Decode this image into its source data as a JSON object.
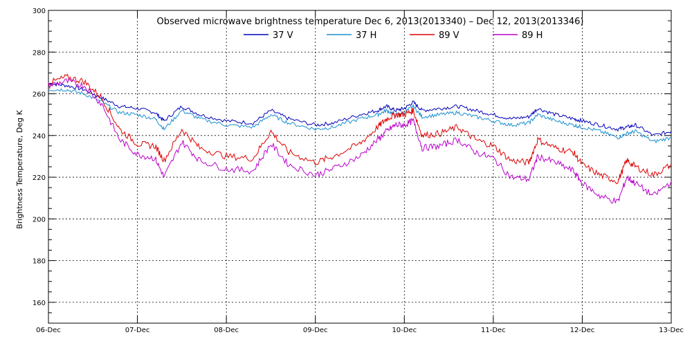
{
  "chart_data": {
    "type": "line",
    "title": "Observed microwave brightness temperature Dec  6, 2013(2013340) – Dec 12, 2013(2013346)",
    "xlabel": "",
    "ylabel": "Brightness Temperature, Deg K",
    "x_ticks": [
      "06-Dec",
      "07-Dec",
      "08-Dec",
      "09-Dec",
      "10-Dec",
      "11-Dec",
      "12-Dec",
      "13-Dec"
    ],
    "xlim": [
      0,
      7
    ],
    "y_ticks": [
      160,
      180,
      200,
      220,
      240,
      260,
      280,
      300
    ],
    "ylim": [
      150,
      300
    ],
    "grid": true,
    "legend_position": "top-center",
    "x": [
      0,
      0.2,
      0.4,
      0.6,
      0.8,
      1.0,
      1.2,
      1.3,
      1.5,
      1.7,
      2.0,
      2.3,
      2.5,
      2.7,
      3.0,
      3.2,
      3.5,
      3.7,
      3.8,
      3.9,
      4.0,
      4.1,
      4.2,
      4.4,
      4.6,
      4.8,
      5.0,
      5.2,
      5.4,
      5.5,
      5.7,
      5.9,
      6.0,
      6.2,
      6.4,
      6.5,
      6.6,
      6.8,
      7.0
    ],
    "series": [
      {
        "name": "37 V",
        "color": "#0000bb",
        "values": [
          265,
          264,
          262,
          258,
          254,
          253,
          251,
          247,
          254,
          250,
          247,
          246,
          252,
          248,
          245,
          246,
          250,
          252,
          254,
          252,
          253,
          256,
          252,
          253,
          254,
          252,
          250,
          248,
          249,
          253,
          250,
          248,
          247,
          245,
          243,
          244,
          245,
          240,
          242
        ]
      },
      {
        "name": "37 H",
        "color": "#1a8fd0",
        "values": [
          262,
          262,
          260,
          256,
          251,
          250,
          248,
          243,
          252,
          248,
          245,
          244,
          250,
          246,
          243,
          244,
          248,
          250,
          252,
          250,
          251,
          254,
          249,
          250,
          251,
          249,
          247,
          245,
          246,
          250,
          247,
          245,
          244,
          242,
          239,
          241,
          242,
          237,
          239
        ]
      },
      {
        "name": "89 V",
        "color": "#dd0000",
        "values": [
          265,
          268,
          266,
          258,
          243,
          236,
          235,
          228,
          243,
          234,
          230,
          229,
          242,
          232,
          227,
          230,
          236,
          244,
          248,
          250,
          250,
          252,
          240,
          241,
          244,
          238,
          235,
          228,
          227,
          238,
          234,
          232,
          226,
          221,
          218,
          228,
          225,
          221,
          226
        ]
      },
      {
        "name": "89 H",
        "color": "#bb00cc",
        "values": [
          264,
          266,
          264,
          255,
          238,
          231,
          229,
          220,
          237,
          228,
          224,
          223,
          236,
          226,
          221,
          224,
          230,
          238,
          242,
          245,
          245,
          247,
          234,
          235,
          238,
          232,
          229,
          220,
          219,
          230,
          227,
          223,
          217,
          211,
          208,
          220,
          217,
          211,
          218
        ]
      }
    ]
  }
}
